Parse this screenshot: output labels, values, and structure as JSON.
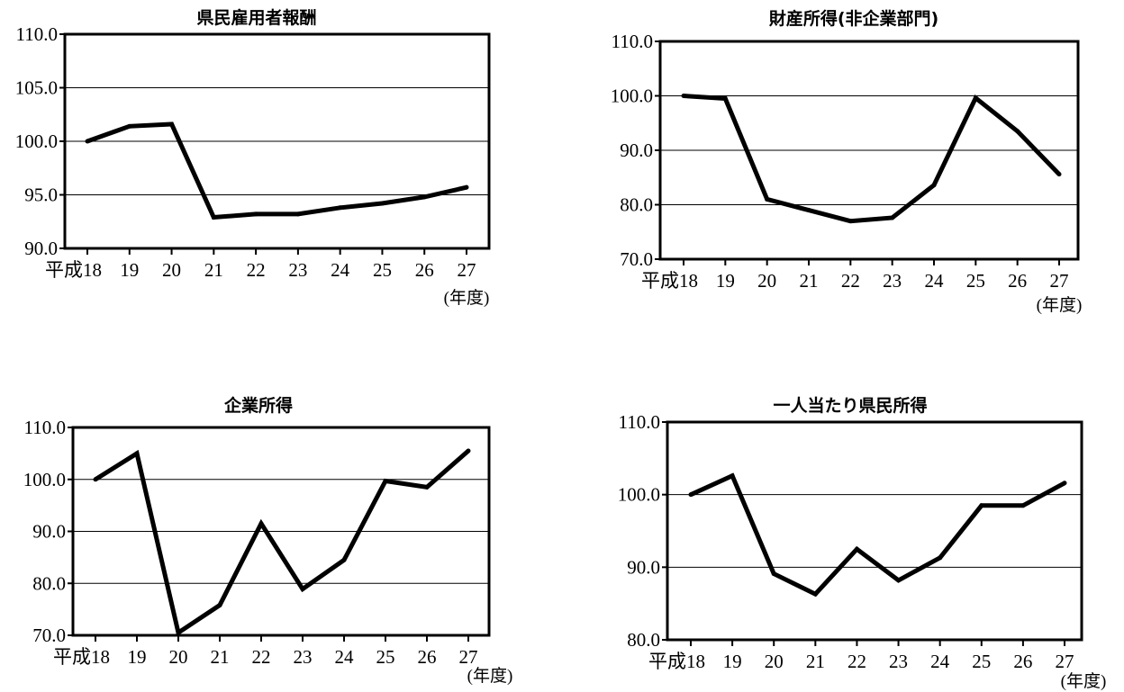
{
  "chart_data": [
    {
      "type": "line",
      "title": "県民雇用者報酬",
      "categories": [
        "平成18",
        "19",
        "20",
        "21",
        "22",
        "23",
        "24",
        "25",
        "26",
        "27"
      ],
      "x_unit_label": "(年度)",
      "ylim": [
        90.0,
        110.0
      ],
      "yticks": [
        "90.0",
        "95.0",
        "100.0",
        "105.0",
        "110.0"
      ],
      "grid": true,
      "series": [
        {
          "values": [
            100.0,
            101.4,
            101.6,
            92.9,
            93.2,
            93.2,
            93.8,
            94.2,
            94.8,
            95.7
          ]
        }
      ]
    },
    {
      "type": "line",
      "title": "財産所得(非企業部門)",
      "categories": [
        "平成18",
        "19",
        "20",
        "21",
        "22",
        "23",
        "24",
        "25",
        "26",
        "27"
      ],
      "x_unit_label": "(年度)",
      "ylim": [
        70.0,
        110.0
      ],
      "yticks": [
        "70.0",
        "80.0",
        "90.0",
        "100.0",
        "110.0"
      ],
      "grid": true,
      "series": [
        {
          "values": [
            100.0,
            99.5,
            81.0,
            79.0,
            77.0,
            77.6,
            83.6,
            99.6,
            93.5,
            85.6
          ]
        }
      ]
    },
    {
      "type": "line",
      "title": "企業所得",
      "categories": [
        "平成18",
        "19",
        "20",
        "21",
        "22",
        "23",
        "24",
        "25",
        "26",
        "27"
      ],
      "x_unit_label": "(年度)",
      "ylim": [
        70.0,
        110.0
      ],
      "yticks": [
        "70.0",
        "80.0",
        "90.0",
        "100.0",
        "110.0"
      ],
      "grid": true,
      "series": [
        {
          "values": [
            100.0,
            105.0,
            70.5,
            75.8,
            91.5,
            78.9,
            84.5,
            99.7,
            98.5,
            105.5
          ]
        }
      ]
    },
    {
      "type": "line",
      "title": "一人当たり県民所得",
      "categories": [
        "平成18",
        "19",
        "20",
        "21",
        "22",
        "23",
        "24",
        "25",
        "26",
        "27"
      ],
      "x_unit_label": "(年度)",
      "ylim": [
        80.0,
        110.0
      ],
      "yticks": [
        "80.0",
        "90.0",
        "100.0",
        "110.0"
      ],
      "grid": true,
      "series": [
        {
          "values": [
            100.0,
            102.6,
            89.1,
            86.3,
            92.5,
            88.2,
            91.3,
            98.5,
            98.5,
            101.6
          ]
        }
      ]
    }
  ]
}
